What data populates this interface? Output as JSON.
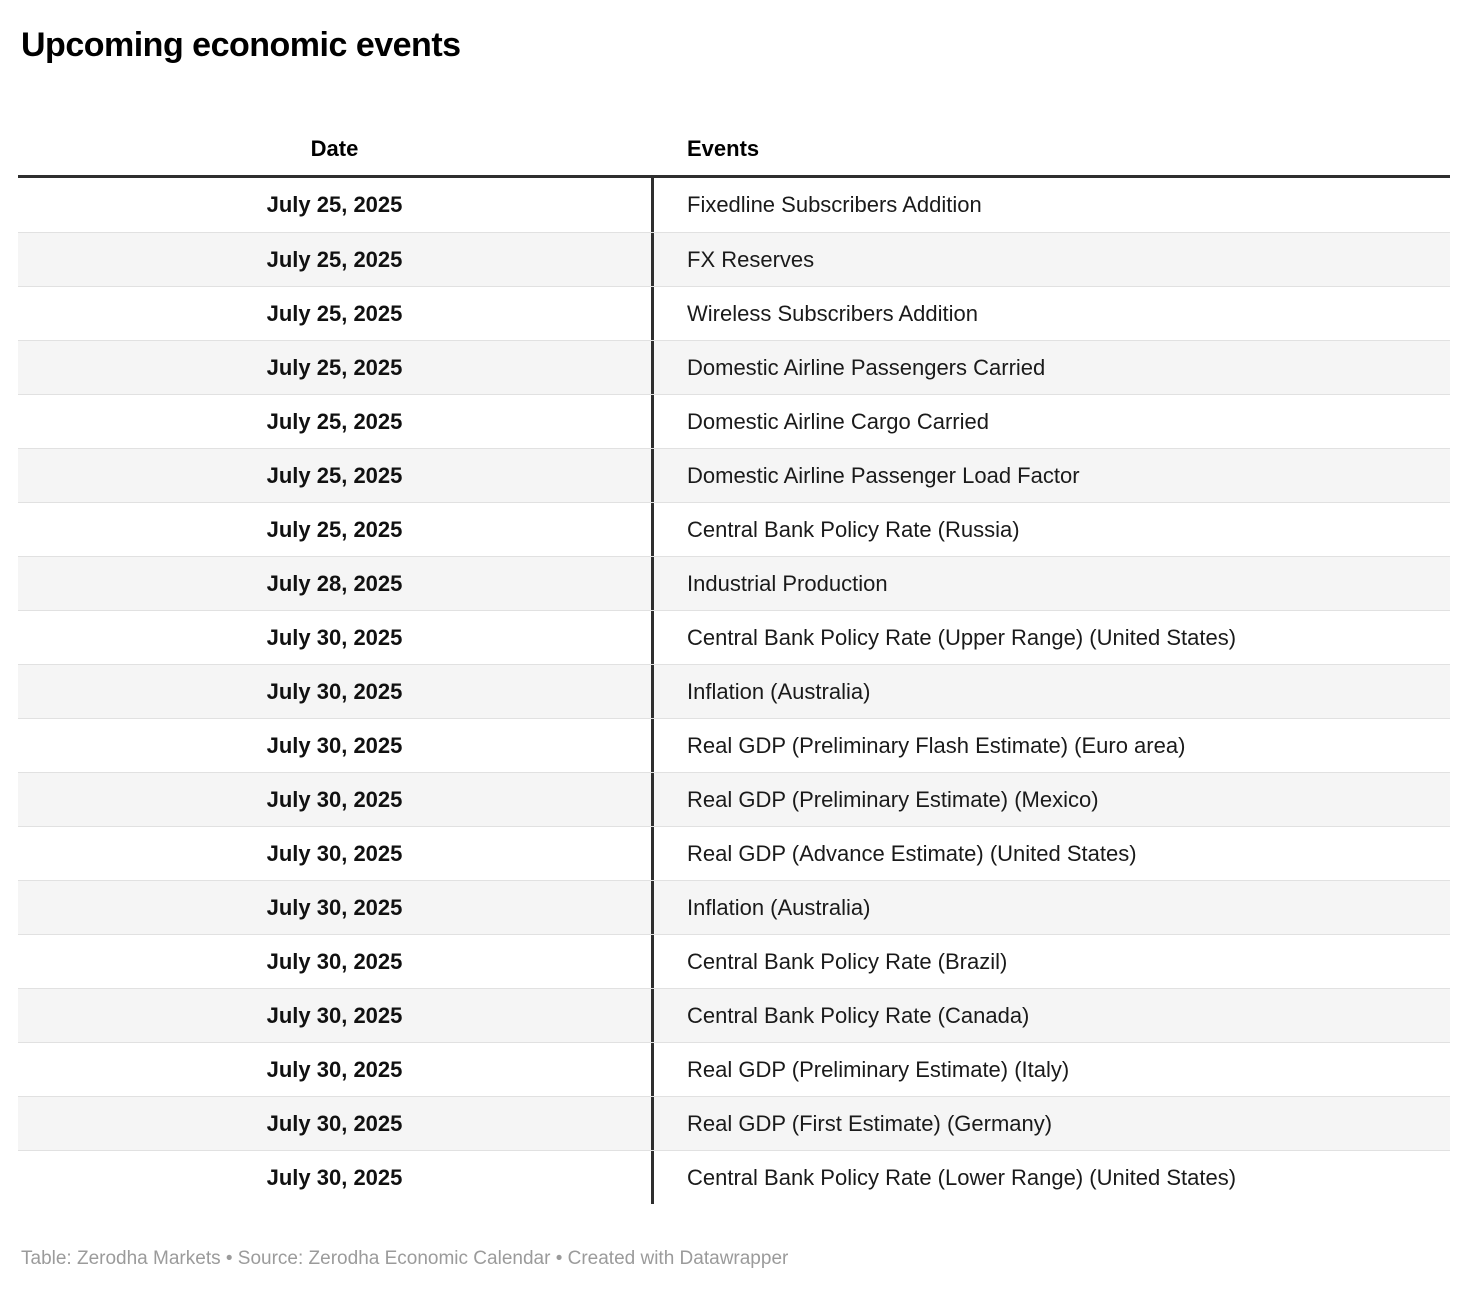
{
  "title": "Upcoming economic events",
  "chart_data": {
    "type": "table",
    "title": "Upcoming economic events",
    "columns": [
      "Date",
      "Events"
    ],
    "rows": [
      [
        "July 25, 2025",
        "Fixedline Subscribers Addition"
      ],
      [
        "July 25, 2025",
        "FX Reserves"
      ],
      [
        "July 25, 2025",
        "Wireless Subscribers Addition"
      ],
      [
        "July 25, 2025",
        "Domestic Airline Passengers Carried"
      ],
      [
        "July 25, 2025",
        "Domestic Airline Cargo Carried"
      ],
      [
        "July 25, 2025",
        "Domestic Airline Passenger Load Factor"
      ],
      [
        "July 25, 2025",
        "Central Bank Policy Rate (Russia)"
      ],
      [
        "July 28, 2025",
        "Industrial Production"
      ],
      [
        "July 30, 2025",
        "Central Bank Policy Rate (Upper Range) (United States)"
      ],
      [
        "July 30, 2025",
        "Inflation (Australia)"
      ],
      [
        "July 30, 2025",
        "Real GDP (Preliminary Flash Estimate) (Euro area)"
      ],
      [
        "July 30, 2025",
        "Real GDP (Preliminary Estimate) (Mexico)"
      ],
      [
        "July 30, 2025",
        "Real GDP (Advance Estimate) (United States)"
      ],
      [
        "July 30, 2025",
        "Inflation (Australia)"
      ],
      [
        "July 30, 2025",
        "Central Bank Policy Rate (Brazil)"
      ],
      [
        "July 30, 2025",
        "Central Bank Policy Rate (Canada)"
      ],
      [
        "July 30, 2025",
        "Real GDP (Preliminary Estimate) (Italy)"
      ],
      [
        "July 30, 2025",
        "Real GDP (First Estimate) (Germany)"
      ],
      [
        "July 30, 2025",
        "Central Bank Policy Rate (Lower Range) (United States)"
      ]
    ],
    "layout": {
      "striped_rows": true,
      "date_column_align": "center",
      "events_column_align": "left"
    }
  },
  "colors": {
    "row_stripe": "#f5f5f5",
    "header_rule": "#2e2e2e",
    "column_divider": "#2e2e2e",
    "row_separator": "#e1e1e1",
    "footer_text": "#9b9b9b"
  },
  "footer": {
    "attribution": "Table: Zerodha Markets • Source: Zerodha Economic Calendar • Created with Datawrapper"
  }
}
